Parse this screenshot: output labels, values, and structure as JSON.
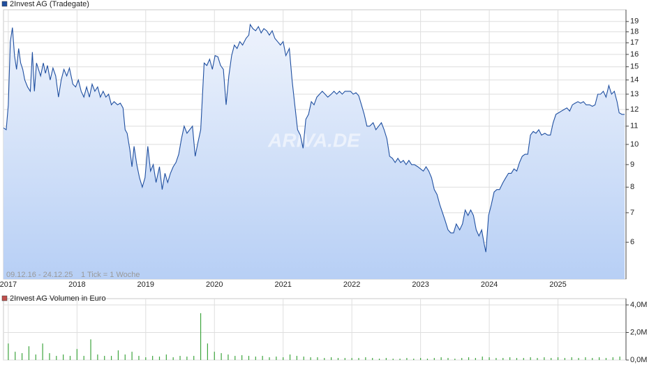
{
  "chart_data": [
    {
      "type": "area",
      "title": "2Invest AG (Tradegate)",
      "date_range": "09.12.16 - 24.12.25",
      "tick_info": "1 Tick = 1 Woche",
      "watermark": "ARIVA.DE",
      "legend_color": "#1f4fa0",
      "color": "#1f4fa0",
      "fill_top": "#eef3fc",
      "fill_bottom": "#b7cff5",
      "log_scale": true,
      "grid": true,
      "xlim": [
        2016.93,
        2025.99
      ],
      "xticks": [
        2017,
        2018,
        2019,
        2020,
        2021,
        2022,
        2023,
        2024,
        2025
      ],
      "ylim": [
        4.95,
        20.2
      ],
      "yticks": [
        6,
        7,
        8,
        9,
        10,
        11,
        12,
        13,
        14,
        15,
        16,
        17,
        18,
        19
      ],
      "x": [
        2016.93,
        2016.97,
        2017.0,
        2017.03,
        2017.06,
        2017.09,
        2017.12,
        2017.15,
        2017.18,
        2017.21,
        2017.24,
        2017.28,
        2017.32,
        2017.35,
        2017.38,
        2017.41,
        2017.44,
        2017.47,
        2017.51,
        2017.54,
        2017.57,
        2017.61,
        2017.65,
        2017.69,
        2017.73,
        2017.77,
        2017.81,
        2017.85,
        2017.89,
        2017.94,
        2017.98,
        2018.02,
        2018.06,
        2018.1,
        2018.14,
        2018.18,
        2018.22,
        2018.26,
        2018.3,
        2018.34,
        2018.38,
        2018.42,
        2018.46,
        2018.5,
        2018.54,
        2018.59,
        2018.63,
        2018.67,
        2018.7,
        2018.73,
        2018.77,
        2018.8,
        2018.83,
        2018.87,
        2018.91,
        2018.95,
        2018.99,
        2019.03,
        2019.07,
        2019.11,
        2019.15,
        2019.2,
        2019.24,
        2019.28,
        2019.32,
        2019.36,
        2019.4,
        2019.44,
        2019.48,
        2019.52,
        2019.56,
        2019.6,
        2019.64,
        2019.68,
        2019.72,
        2019.76,
        2019.8,
        2019.85,
        2019.89,
        2019.93,
        2019.97,
        2020.01,
        2020.05,
        2020.09,
        2020.13,
        2020.17,
        2020.21,
        2020.25,
        2020.29,
        2020.33,
        2020.37,
        2020.41,
        2020.46,
        2020.5,
        2020.52,
        2020.56,
        2020.6,
        2020.64,
        2020.68,
        2020.72,
        2020.76,
        2020.8,
        2020.84,
        2020.88,
        2020.92,
        2020.96,
        2021.0,
        2021.04,
        2021.09,
        2021.13,
        2021.17,
        2021.21,
        2021.25,
        2021.29,
        2021.33,
        2021.37,
        2021.41,
        2021.45,
        2021.49,
        2021.53,
        2021.57,
        2021.61,
        2021.65,
        2021.7,
        2021.74,
        2021.78,
        2021.82,
        2021.86,
        2021.9,
        2021.94,
        2021.98,
        2022.02,
        2022.06,
        2022.1,
        2022.14,
        2022.18,
        2022.22,
        2022.26,
        2022.31,
        2022.35,
        2022.39,
        2022.43,
        2022.47,
        2022.51,
        2022.55,
        2022.59,
        2022.63,
        2022.67,
        2022.71,
        2022.75,
        2022.79,
        2022.83,
        2022.87,
        2022.91,
        2022.96,
        2023.0,
        2023.04,
        2023.08,
        2023.12,
        2023.16,
        2023.2,
        2023.24,
        2023.28,
        2023.32,
        2023.36,
        2023.4,
        2023.44,
        2023.48,
        2023.52,
        2023.57,
        2023.61,
        2023.65,
        2023.69,
        2023.73,
        2023.77,
        2023.81,
        2023.85,
        2023.89,
        2023.93,
        2023.95,
        2023.99,
        2024.03,
        2024.07,
        2024.11,
        2024.15,
        2024.2,
        2024.24,
        2024.28,
        2024.32,
        2024.36,
        2024.4,
        2024.44,
        2024.48,
        2024.52,
        2024.56,
        2024.6,
        2024.64,
        2024.68,
        2024.72,
        2024.76,
        2024.81,
        2024.85,
        2024.89,
        2024.93,
        2024.97,
        2025.01,
        2025.05,
        2025.09,
        2025.13,
        2025.17,
        2025.21,
        2025.25,
        2025.29,
        2025.33,
        2025.37,
        2025.41,
        2025.46,
        2025.5,
        2025.54,
        2025.58,
        2025.62,
        2025.66,
        2025.7,
        2025.74,
        2025.78,
        2025.82,
        2025.86,
        2025.89,
        2025.93,
        2025.97
      ],
      "values": [
        10.9,
        10.8,
        12.3,
        17.1,
        18.4,
        15.9,
        14.8,
        16.5,
        15.3,
        14.8,
        14.0,
        13.5,
        13.2,
        16.2,
        13.2,
        15.3,
        14.8,
        14.3,
        15.3,
        14.5,
        15.1,
        14.0,
        14.9,
        14.3,
        12.8,
        14.0,
        14.8,
        14.3,
        14.9,
        13.7,
        13.5,
        14.0,
        13.2,
        12.8,
        13.5,
        12.8,
        13.7,
        13.2,
        13.5,
        12.8,
        13.2,
        12.8,
        13.0,
        12.3,
        12.5,
        12.3,
        12.4,
        12.1,
        10.8,
        10.6,
        9.7,
        8.9,
        9.9,
        9.0,
        8.4,
        8.0,
        8.4,
        9.9,
        8.7,
        9.0,
        8.2,
        8.9,
        7.9,
        8.6,
        8.2,
        8.6,
        8.9,
        9.1,
        9.5,
        10.3,
        11.0,
        10.6,
        10.8,
        11.0,
        9.4,
        10.1,
        10.8,
        15.3,
        15.1,
        15.6,
        14.8,
        15.9,
        15.8,
        15.1,
        14.8,
        12.3,
        14.3,
        15.9,
        16.8,
        16.5,
        17.1,
        16.8,
        17.4,
        17.7,
        18.7,
        18.3,
        18.1,
        18.5,
        17.9,
        18.3,
        18.1,
        17.7,
        18.1,
        17.4,
        17.1,
        16.8,
        17.1,
        15.9,
        16.5,
        14.0,
        12.3,
        10.8,
        10.5,
        9.8,
        11.4,
        11.7,
        12.5,
        12.3,
        12.8,
        13.0,
        13.2,
        13.0,
        12.8,
        13.0,
        13.2,
        13.0,
        13.2,
        13.0,
        13.2,
        13.2,
        13.2,
        13.0,
        13.1,
        12.9,
        12.3,
        11.7,
        11.0,
        11.0,
        11.2,
        10.8,
        11.0,
        11.2,
        10.8,
        10.3,
        9.4,
        9.3,
        9.1,
        9.3,
        9.1,
        9.2,
        9.0,
        9.2,
        9.0,
        9.0,
        8.9,
        8.8,
        8.7,
        8.9,
        8.7,
        8.4,
        7.9,
        7.7,
        7.3,
        7.0,
        6.7,
        6.4,
        6.3,
        6.3,
        6.6,
        6.4,
        6.6,
        7.1,
        6.9,
        7.1,
        6.9,
        6.4,
        6.2,
        6.4,
        5.9,
        5.7,
        6.9,
        7.3,
        7.8,
        7.9,
        7.9,
        8.2,
        8.4,
        8.6,
        8.6,
        8.8,
        8.7,
        9.1,
        9.4,
        9.5,
        9.5,
        10.5,
        10.7,
        10.6,
        10.8,
        10.5,
        10.6,
        10.5,
        10.5,
        11.2,
        11.7,
        11.8,
        11.9,
        12.0,
        12.1,
        11.9,
        12.3,
        12.4,
        12.5,
        12.4,
        12.5,
        12.3,
        12.3,
        12.2,
        12.3,
        13.0,
        13.0,
        13.2,
        12.8,
        13.6,
        13.0,
        13.2,
        12.5,
        11.8,
        11.7,
        11.7
      ]
    },
    {
      "type": "bar",
      "title": "2Invest AG Volumen in Euro",
      "legend_color": "#c0504d",
      "color": "#3ea53e",
      "grid": true,
      "xlim": [
        2016.93,
        2025.99
      ],
      "ylim": [
        0,
        4000000
      ],
      "yticks": [
        {
          "value": 0,
          "label": "0,0M"
        },
        {
          "value": 2000000,
          "label": "2,0M"
        },
        {
          "value": 4000000,
          "label": "4,0M"
        }
      ],
      "x": [
        2017.0,
        2017.1,
        2017.2,
        2017.3,
        2017.4,
        2017.5,
        2017.6,
        2017.7,
        2017.8,
        2017.9,
        2018.0,
        2018.1,
        2018.2,
        2018.3,
        2018.4,
        2018.5,
        2018.6,
        2018.7,
        2018.8,
        2018.9,
        2019.0,
        2019.1,
        2019.2,
        2019.3,
        2019.4,
        2019.5,
        2019.6,
        2019.7,
        2019.8,
        2019.9,
        2020.0,
        2020.1,
        2020.2,
        2020.3,
        2020.4,
        2020.5,
        2020.6,
        2020.7,
        2020.8,
        2020.9,
        2021.0,
        2021.1,
        2021.2,
        2021.3,
        2021.4,
        2021.5,
        2021.6,
        2021.7,
        2021.8,
        2021.9,
        2022.0,
        2022.1,
        2022.2,
        2022.3,
        2022.4,
        2022.5,
        2022.6,
        2022.7,
        2022.8,
        2022.9,
        2023.0,
        2023.1,
        2023.2,
        2023.3,
        2023.4,
        2023.5,
        2023.6,
        2023.7,
        2023.8,
        2023.9,
        2024.0,
        2024.1,
        2024.2,
        2024.3,
        2024.4,
        2024.5,
        2024.6,
        2024.7,
        2024.8,
        2024.9,
        2025.0,
        2025.1,
        2025.2,
        2025.3,
        2025.4,
        2025.5,
        2025.6,
        2025.7,
        2025.8,
        2025.9
      ],
      "values": [
        1200000,
        600000,
        500000,
        1000000,
        400000,
        1200000,
        500000,
        300000,
        400000,
        300000,
        800000,
        300000,
        1500000,
        400000,
        300000,
        300000,
        700000,
        400000,
        600000,
        300000,
        200000,
        300000,
        250000,
        400000,
        200000,
        300000,
        250000,
        300000,
        3400000,
        1200000,
        600000,
        500000,
        400000,
        300000,
        350000,
        300000,
        250000,
        300000,
        200000,
        250000,
        200000,
        400000,
        300000,
        250000,
        200000,
        200000,
        150000,
        200000,
        150000,
        150000,
        150000,
        150000,
        200000,
        150000,
        100000,
        150000,
        100000,
        100000,
        150000,
        100000,
        150000,
        100000,
        150000,
        200000,
        150000,
        100000,
        150000,
        200000,
        150000,
        250000,
        200000,
        150000,
        150000,
        200000,
        150000,
        150000,
        200000,
        150000,
        200000,
        150000,
        200000,
        150000,
        200000,
        150000,
        200000,
        150000,
        200000,
        150000,
        200000,
        250000
      ]
    }
  ]
}
